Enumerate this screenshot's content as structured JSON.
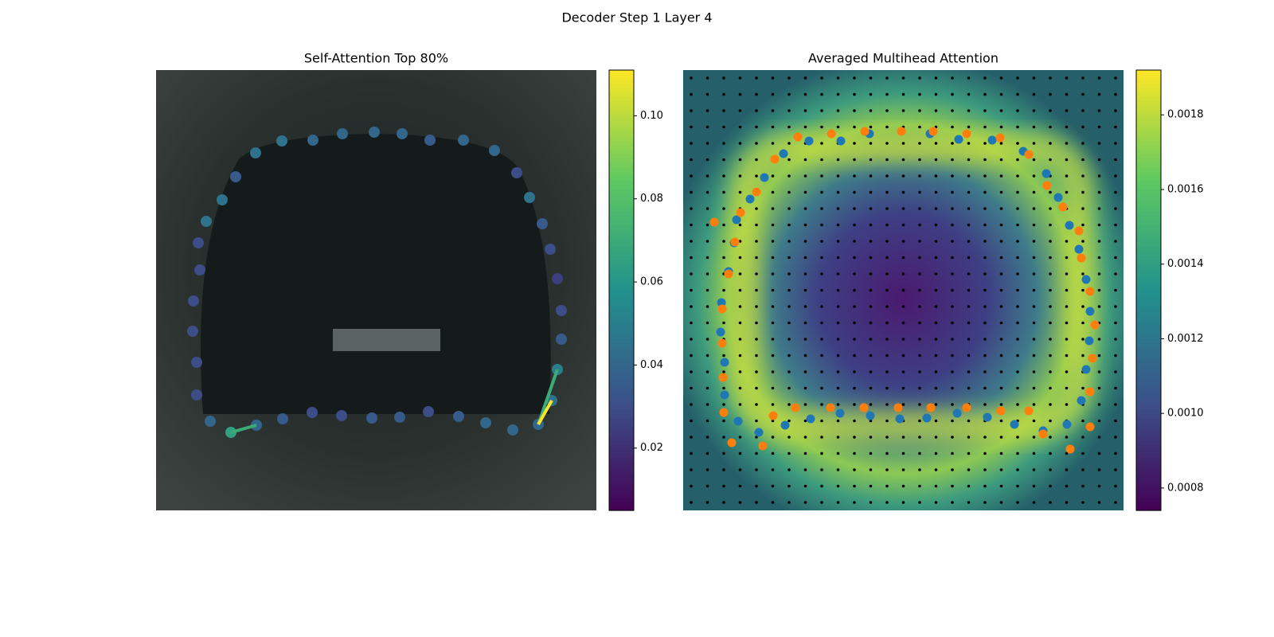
{
  "title": "Decoder Step 1 Layer 4",
  "chart_data": [
    {
      "type": "attention-scatter",
      "title": "Self-Attention Top 80%",
      "xlim": [
        0,
        553
      ],
      "ylim": [
        553,
        0
      ],
      "colormap": "viridis",
      "x": [
        94,
        126,
        159,
        196,
        233,
        271,
        306,
        342,
        380,
        414,
        448,
        480,
        497,
        504,
        509,
        509,
        504,
        495,
        485,
        469,
        453,
        425,
        386,
        344,
        309,
        274,
        234,
        197,
        158,
        125,
        100,
        83,
        63,
        53,
        55,
        47,
        46,
        51,
        51,
        68
      ],
      "y": [
        455,
        446,
        438,
        430,
        434,
        437,
        436,
        429,
        435,
        443,
        452,
        445,
        415,
        376,
        338,
        302,
        262,
        225,
        193,
        160,
        129,
        101,
        88,
        88,
        80,
        78,
        80,
        88,
        89,
        104,
        134,
        163,
        190,
        217,
        251,
        290,
        328,
        367,
        408,
        441
      ],
      "values": [
        0.065,
        0.04,
        0.035,
        0.03,
        0.03,
        0.035,
        0.035,
        0.03,
        0.035,
        0.04,
        0.04,
        0.04,
        0.045,
        0.05,
        0.035,
        0.03,
        0.025,
        0.03,
        0.035,
        0.045,
        0.03,
        0.04,
        0.04,
        0.035,
        0.04,
        0.04,
        0.04,
        0.04,
        0.045,
        0.045,
        0.035,
        0.045,
        0.045,
        0.03,
        0.03,
        0.03,
        0.03,
        0.03,
        0.03,
        0.04
      ],
      "edges": {
        "from": [
          0,
          11,
          11
        ],
        "to": [
          1,
          13,
          12
        ],
        "values": [
          0.07,
          0.07,
          0.11
        ]
      },
      "clim": [
        0.005,
        0.111
      ],
      "cticks": [
        0.02,
        0.04,
        0.06,
        0.08,
        {
          "value": 0.1,
          "label": "0.10"
        }
      ]
    },
    {
      "type": "heatmap-scatter",
      "title": "Averaged Multihead Attention",
      "xlim": [
        0,
        553
      ],
      "ylim": [
        553,
        0
      ],
      "colormap": "viridis",
      "series": [
        {
          "color": "#1f77b4",
          "x": [
            198,
            234,
            310,
            346,
            388,
            427,
            456,
            471,
            485,
            497,
            506,
            511,
            510,
            506,
            500,
            482,
            452,
            416,
            382,
            344,
            306,
            272,
            235,
            197,
            160,
            128,
            95,
            69,
            52,
            52,
            47,
            48,
            57,
            64,
            67,
            84,
            102,
            126,
            158
          ],
          "y": [
            89,
            80,
            80,
            87,
            88,
            102,
            130,
            160,
            195,
            225,
            263,
            303,
            340,
            376,
            415,
            445,
            453,
            445,
            436,
            431,
            437,
            438,
            434,
            431,
            438,
            446,
            455,
            441,
            408,
            367,
            329,
            292,
            253,
            217,
            188,
            162,
            135,
            105,
            89
          ]
        },
        {
          "color": "#ff7f0e",
          "x": [
            144,
            186,
            228,
            274,
            314,
            356,
            398,
            434,
            457,
            477,
            497,
            500,
            511,
            517,
            514,
            511,
            511,
            486,
            452,
            434,
            399,
            356,
            311,
            270,
            227,
            185,
            141,
            113,
            100,
            61,
            51,
            50,
            49,
            49,
            57,
            65,
            72,
            92,
            115,
            39
          ],
          "y": [
            84,
            80,
            77,
            77,
            77,
            80,
            85,
            106,
            145,
            172,
            202,
            236,
            278,
            320,
            362,
            404,
            448,
            476,
            457,
            428,
            428,
            424,
            424,
            424,
            424,
            424,
            424,
            434,
            472,
            468,
            430,
            386,
            343,
            300,
            256,
            216,
            179,
            153,
            112,
            191
          ]
        }
      ],
      "clim": [
        0.00074,
        0.00192
      ],
      "cticks": [
        {
          "value": 0.0008,
          "label": "0.0008"
        },
        {
          "value": 0.001,
          "label": "0.0010"
        },
        {
          "value": 0.0012,
          "label": "0.0012"
        },
        {
          "value": 0.0014,
          "label": "0.0014"
        },
        {
          "value": 0.0016,
          "label": "0.0016"
        },
        {
          "value": 0.0018,
          "label": "0.0018"
        }
      ]
    }
  ]
}
